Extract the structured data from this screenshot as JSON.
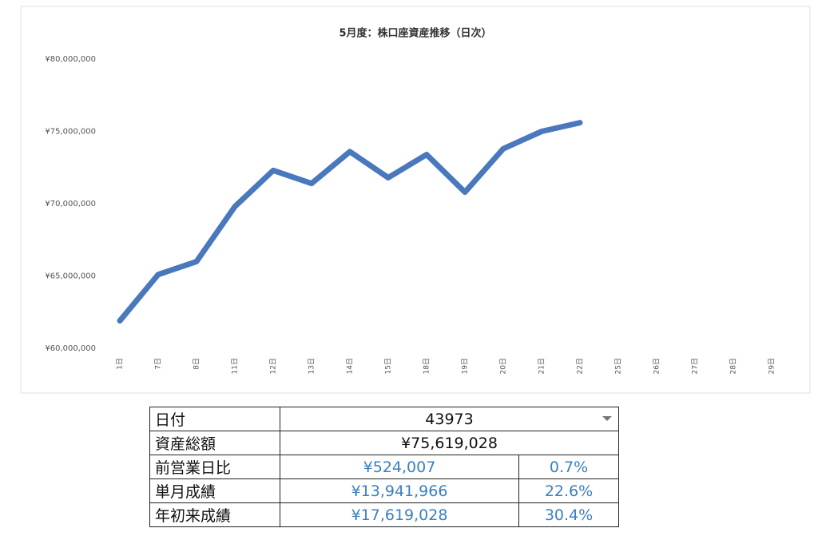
{
  "chart_data": {
    "type": "line",
    "title": "5月度：株口座資産推移（日次）",
    "categories": [
      "1日",
      "7日",
      "8日",
      "11日",
      "12日",
      "13日",
      "14日",
      "15日",
      "18日",
      "19日",
      "20日",
      "21日",
      "22日",
      "25日",
      "26日",
      "27日",
      "28日",
      "29日"
    ],
    "values": [
      61900000,
      65100000,
      66000000,
      69800000,
      72300000,
      71400000,
      73600000,
      71800000,
      73400000,
      70800000,
      73800000,
      75000000,
      75600000,
      null,
      null,
      null,
      null,
      null
    ],
    "color": "#4a78bd",
    "ylim": [
      60000000,
      80000000
    ],
    "yticks": [
      {
        "value": 60000000,
        "label": "¥60,000,000"
      },
      {
        "value": 65000000,
        "label": "¥65,000,000"
      },
      {
        "value": 70000000,
        "label": "¥70,000,000"
      },
      {
        "value": 75000000,
        "label": "¥75,000,000"
      },
      {
        "value": 80000000,
        "label": "¥80,000,000"
      }
    ],
    "grid": false
  },
  "table": {
    "rows": [
      [
        "日付",
        "43973"
      ],
      [
        "資産総額",
        "¥75,619,028"
      ],
      [
        "前営業日比",
        "¥524,007",
        "0.7%"
      ],
      [
        "単月成績",
        "¥13,941,966",
        "22.6%"
      ],
      [
        "年初来成績",
        "¥17,619,028",
        "30.4%"
      ]
    ]
  }
}
